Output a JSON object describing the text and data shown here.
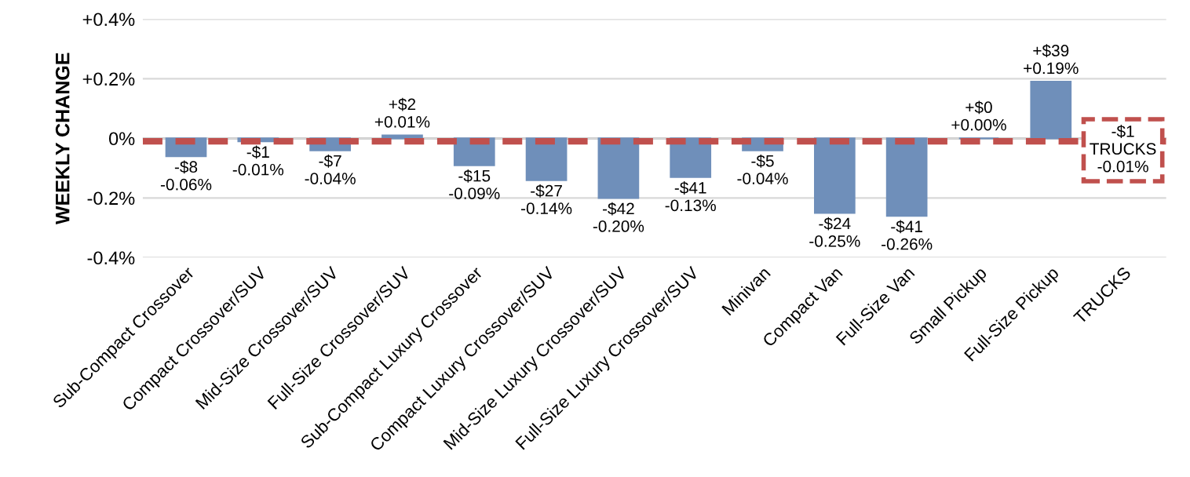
{
  "chart_data": {
    "type": "bar",
    "ylabel": "WEEKLY CHANGE",
    "categories": [
      "Sub-Compact Crossover",
      "Compact Crossover/SUV",
      "Mid-Size Crossover/SUV",
      "Full-Size Crossover/SUV",
      "Sub-Compact Luxury Crossover",
      "Compact Luxury Crossover/SUV",
      "Mid-Size Luxury Crossover/SUV",
      "Full-Size Luxury Crossover/SUV",
      "Minivan",
      "Compact Van",
      "Full-Size Van",
      "Small Pickup",
      "Full-Size Pickup",
      "TRUCKS"
    ],
    "values": [
      -0.06,
      -0.01,
      -0.04,
      0.01,
      -0.09,
      -0.14,
      -0.2,
      -0.13,
      -0.04,
      -0.25,
      -0.26,
      0.0,
      0.19,
      null
    ],
    "value_labels": [
      "-$8\n-0.06%",
      "-$1\n-0.01%",
      "-$7\n-0.04%",
      "+$2\n+0.01%",
      "-$15\n-0.09%",
      "-$27\n-0.14%",
      "-$42\n-0.20%",
      "-$41\n-0.13%",
      "-$5\n-0.04%",
      "-$24\n-0.25%",
      "-$41\n-0.26%",
      "+$0\n+0.00%",
      "+$39\n+0.19%",
      null
    ],
    "color": "#6f8fba",
    "ylim": [
      -0.4,
      0.4
    ],
    "yticks": [
      {
        "value": -0.4,
        "label": "-0.4%"
      },
      {
        "value": -0.2,
        "label": "-0.2%"
      },
      {
        "value": 0,
        "label": "0%"
      },
      {
        "value": 0.2,
        "label": "+0.2%"
      },
      {
        "value": 0.4,
        "label": "+0.4%"
      }
    ],
    "grid": "y",
    "ref_lines": [
      {
        "axis": "y",
        "value": -0.01,
        "label": "-$1\nTRUCKS\n-0.01%",
        "color": "#c0504d",
        "line_style": "dashed"
      }
    ]
  }
}
